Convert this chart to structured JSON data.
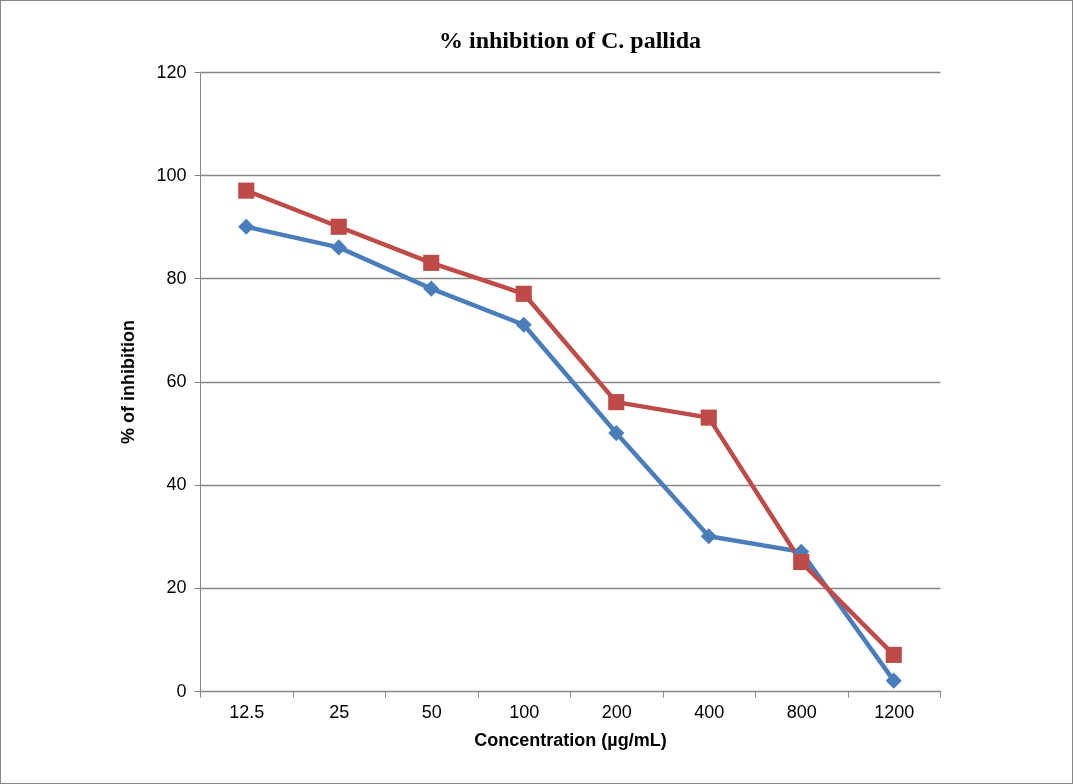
{
  "chart_data": {
    "type": "line",
    "title": "% inhibition of C. pallida",
    "xlabel": "Concentration (µg/mL)",
    "ylabel": "% of inhibition",
    "categories": [
      "12.5",
      "25",
      "50",
      "100",
      "200",
      "400",
      "800",
      "1200"
    ],
    "series": [
      {
        "color": "#4a7ebb",
        "marker": "diamond",
        "values": [
          90,
          86,
          78,
          71,
          50,
          30,
          27,
          2
        ]
      },
      {
        "color": "#be4b48",
        "marker": "square",
        "values": [
          97,
          90,
          83,
          77,
          56,
          53,
          25,
          7
        ]
      }
    ],
    "ylim": [
      0,
      120
    ],
    "yticks": [
      0,
      20,
      40,
      60,
      80,
      100,
      120
    ],
    "grid": "y",
    "legend": false,
    "line_style": "solid"
  }
}
